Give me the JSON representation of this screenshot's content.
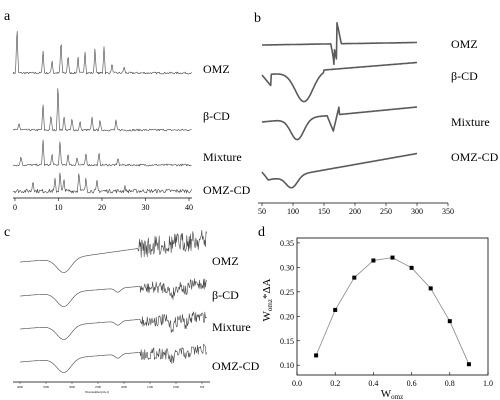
{
  "panels": {
    "a": {
      "letter": "a",
      "series": [
        "OMZ",
        "β-CD",
        "Mixture",
        "OMZ-CD"
      ],
      "xticks": [
        "0",
        "10",
        "20",
        "30",
        "40"
      ],
      "xlim": [
        0,
        40
      ]
    },
    "b": {
      "letter": "b",
      "series": [
        "OMZ",
        "β-CD",
        "Mixture",
        "OMZ-CD"
      ],
      "xticks": [
        "50",
        "100",
        "150",
        "200",
        "250",
        "300",
        "350"
      ],
      "xlim": [
        50,
        350
      ]
    },
    "c": {
      "letter": "c",
      "series": [
        "OMZ",
        "β-CD",
        "Mixture",
        "OMZ-CD"
      ],
      "xticks": [
        "4000",
        "3500",
        "3000",
        "2500",
        "2000",
        "1500",
        "1000",
        "500"
      ],
      "xlabel": "Wavenumber(cm-1)"
    },
    "d": {
      "letter": "d",
      "ylabel_main": "W",
      "ylabel_sub": "omz",
      "ylabel_rest": "*ΔA",
      "xlabel_main": "W",
      "xlabel_sub": "omz",
      "xticks": [
        "0.0",
        "0.2",
        "0.4",
        "0.6",
        "0.8",
        "1.0"
      ],
      "yticks": [
        "0.10",
        "0.15",
        "0.20",
        "0.25",
        "0.30",
        "0.35"
      ]
    }
  },
  "chart_data": {
    "type": "scatter",
    "x": [
      0.1,
      0.2,
      0.3,
      0.4,
      0.5,
      0.6,
      0.7,
      0.8,
      0.9
    ],
    "y": [
      0.12,
      0.213,
      0.279,
      0.314,
      0.32,
      0.299,
      0.257,
      0.19,
      0.102
    ],
    "xlim": [
      0.0,
      1.0
    ],
    "ylim": [
      0.08,
      0.36
    ],
    "connected": true,
    "marker_color": "#000000",
    "line_color": "#888888"
  },
  "colors": {
    "trace": "#444444",
    "trace_b": "#5a5a5a",
    "axis": "#000000"
  }
}
